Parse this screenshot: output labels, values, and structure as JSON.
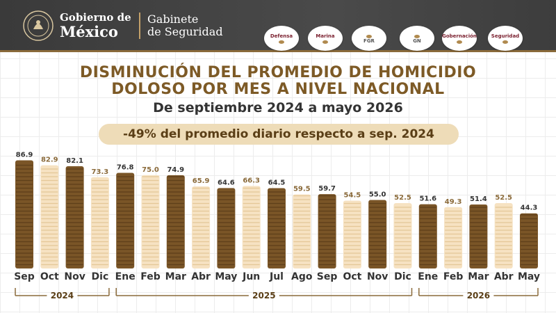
{
  "header": {
    "gov_line1": "Gobierno de",
    "gov_line2": "México",
    "cabinet_line1": "Gabinete",
    "cabinet_line2": "de Seguridad",
    "logos": [
      {
        "name": "defensa-logo",
        "text": "Defensa"
      },
      {
        "name": "marina-logo",
        "text": "Marina"
      },
      {
        "name": "fgr-logo",
        "text": "FGR"
      },
      {
        "name": "gn-logo",
        "text": "GN"
      },
      {
        "name": "gobernacion-logo",
        "text": "Gobernación"
      },
      {
        "name": "seguridad-logo",
        "text": "Seguridad"
      }
    ]
  },
  "chart_data": {
    "type": "bar",
    "title_line1": "DISMINUCIÓN DEL PROMEDIO DE HOMICIDIO",
    "title_line2": "DOLOSO POR MES A NIVEL NACIONAL",
    "subtitle": "De septiembre 2024 a mayo 2026",
    "annotation": "-49% del promedio diario respecto a sep. 2024",
    "categories": [
      "Sep",
      "Oct",
      "Nov",
      "Dic",
      "Ene",
      "Feb",
      "Mar",
      "Abr",
      "May",
      "Jun",
      "Jul",
      "Ago",
      "Sep",
      "Oct",
      "Nov",
      "Dic",
      "Ene",
      "Feb",
      "Mar",
      "Abr",
      "May"
    ],
    "values": [
      86.9,
      82.9,
      82.1,
      73.3,
      76.8,
      75.0,
      74.9,
      65.9,
      64.6,
      66.3,
      64.5,
      59.5,
      59.7,
      54.5,
      55.0,
      52.5,
      51.6,
      49.3,
      51.4,
      52.5,
      44.3
    ],
    "value_labels": [
      "86.9",
      "82.9",
      "82.1",
      "73.3",
      "76.8",
      "75.0",
      "74.9",
      "65.9",
      "64.6",
      "66.3",
      "64.5",
      "59.5",
      "59.7",
      "54.5",
      "55.0",
      "52.5",
      "51.6",
      "49.3",
      "51.4",
      "52.5",
      "44.3"
    ],
    "year_groups": [
      {
        "label": "2024",
        "start": 0,
        "end": 3
      },
      {
        "label": "2025",
        "start": 4,
        "end": 15
      },
      {
        "label": "2026",
        "start": 16,
        "end": 20
      }
    ],
    "colors": {
      "dark": "#7a5527",
      "dark_stripe": "#5e3f1a",
      "light": "#f6e2c2",
      "light_stripe": "#e4c797",
      "label_dark": "#333333",
      "label_light": "#8a6a3a"
    },
    "ylim": [
      0,
      90
    ]
  }
}
